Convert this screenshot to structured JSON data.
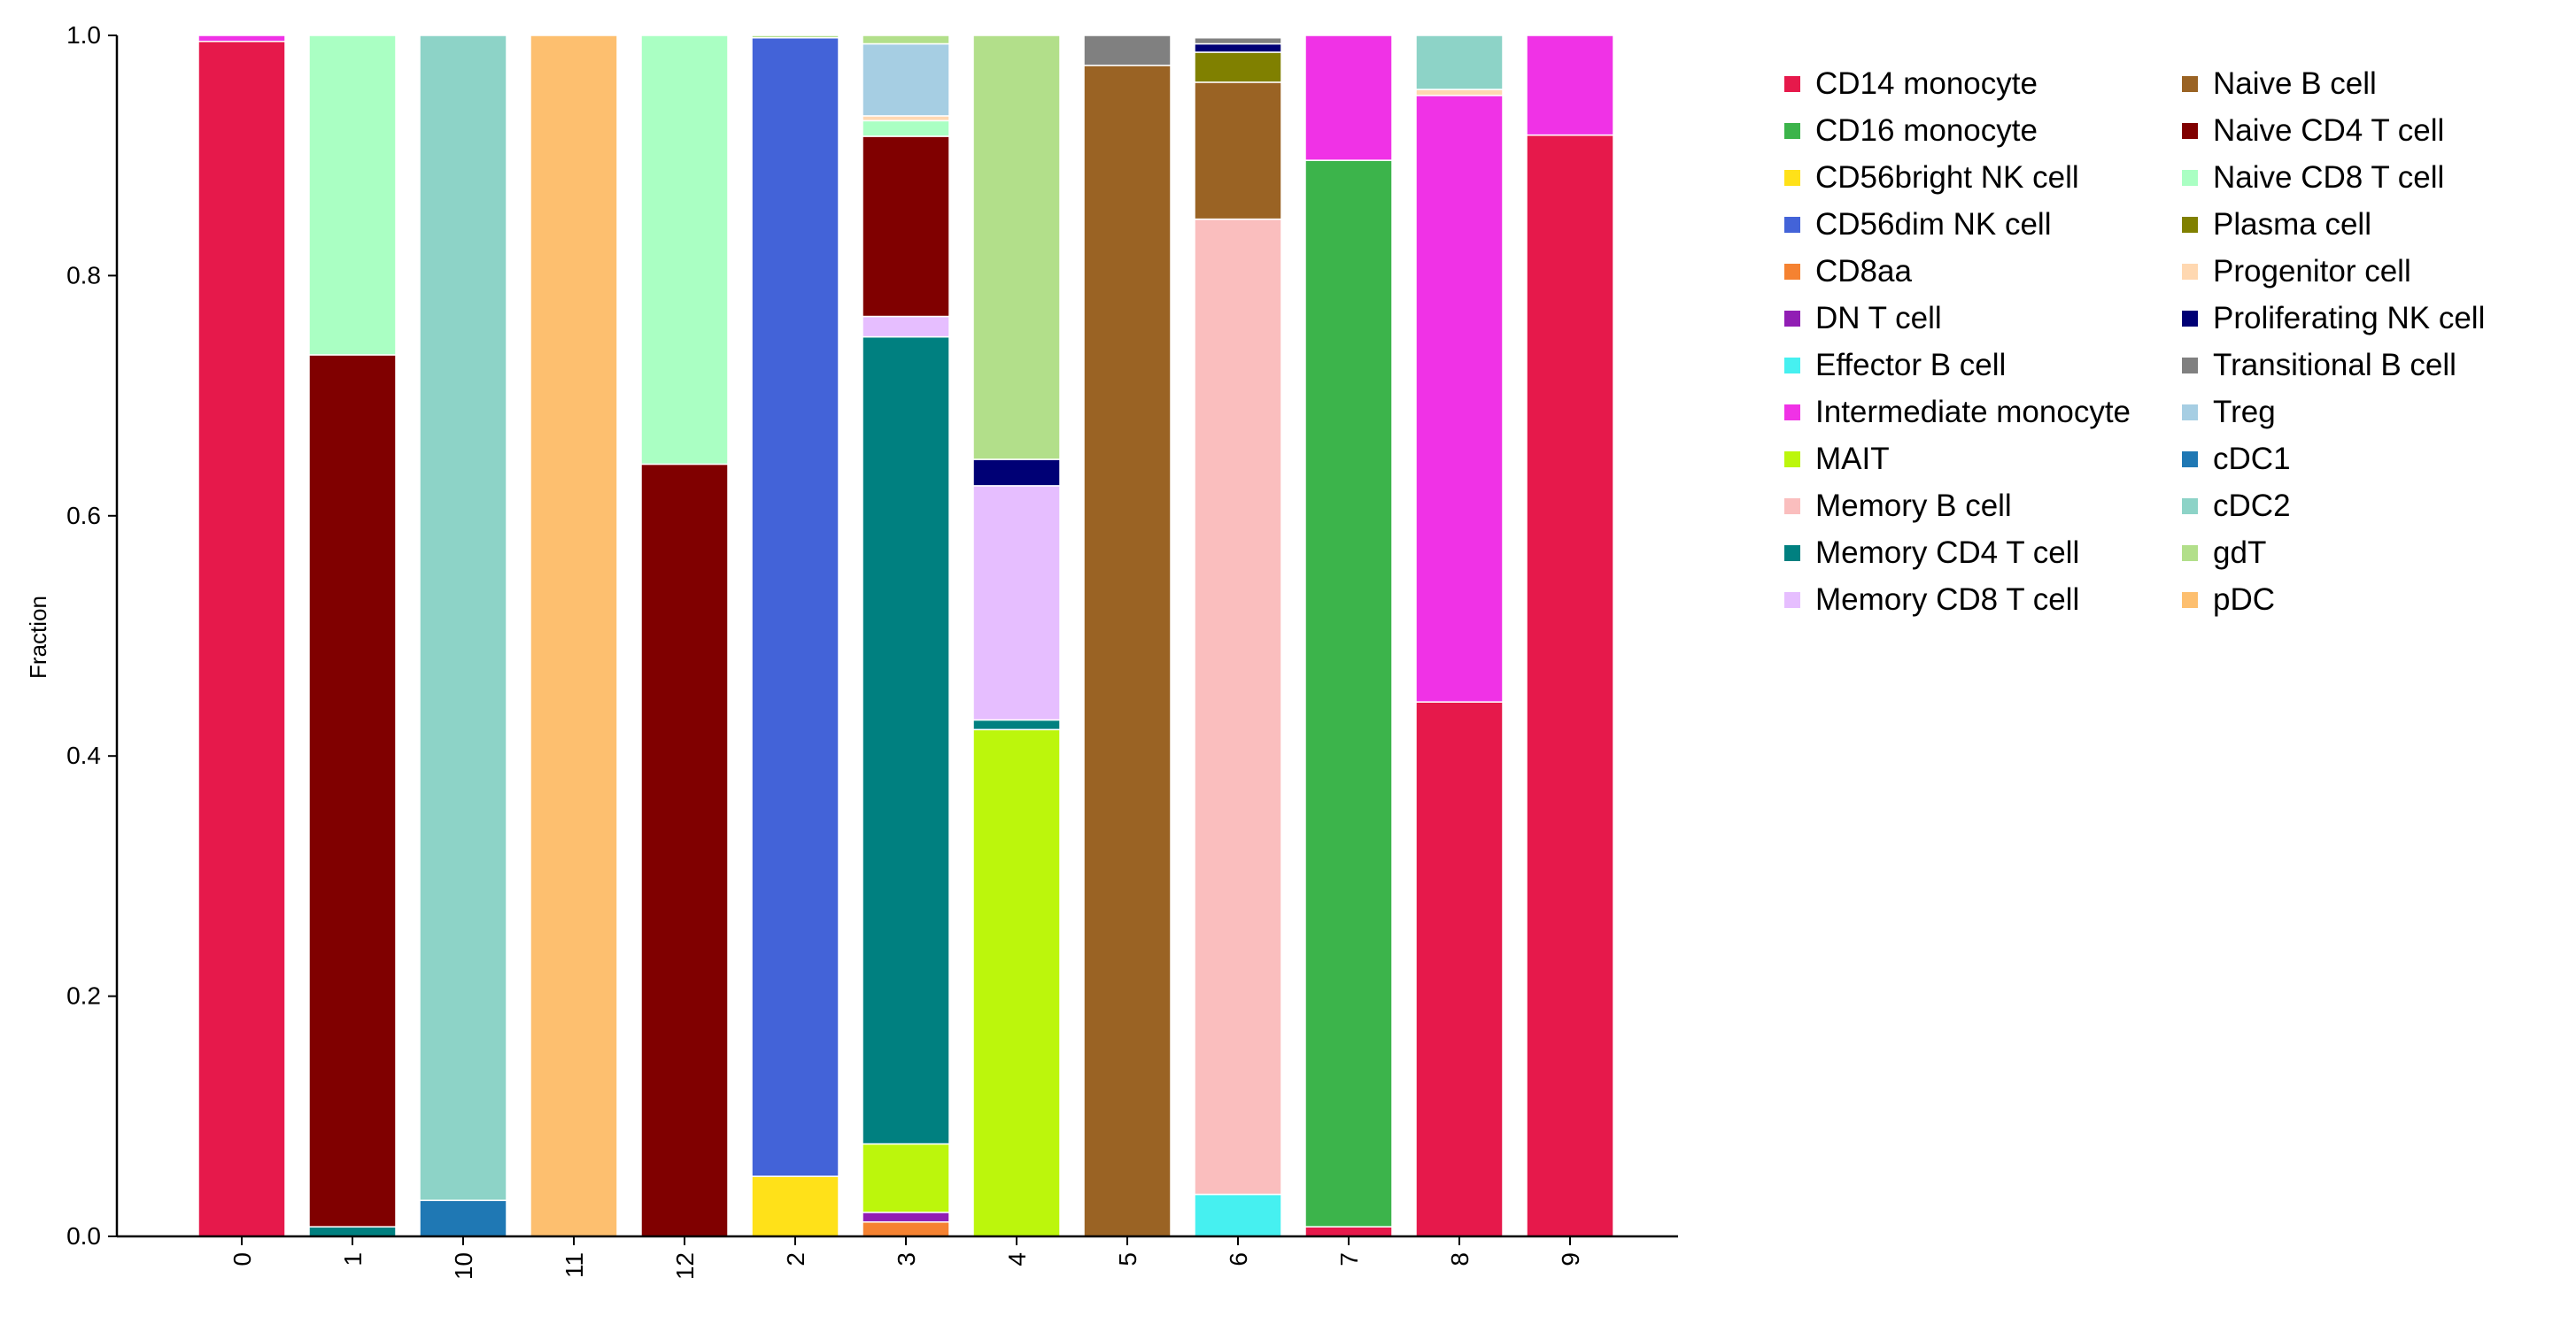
{
  "chart_data": {
    "type": "bar",
    "stacked": true,
    "title": "",
    "xlabel": "",
    "ylabel": "Fraction",
    "ylim": [
      0,
      1
    ],
    "yticks": [
      "0.0",
      "0.2",
      "0.4",
      "0.6",
      "0.8",
      "1.0"
    ],
    "grid": false,
    "legend_position": "right",
    "categories": [
      "0",
      "1",
      "10",
      "11",
      "12",
      "2",
      "3",
      "4",
      "5",
      "6",
      "7",
      "8",
      "9"
    ],
    "series": [
      {
        "name": "CD14 monocyte",
        "color": "#e6194b",
        "values": [
          0.995,
          0,
          0,
          0,
          0,
          0,
          0,
          0,
          0,
          0,
          0.008,
          0.445,
          0.917
        ]
      },
      {
        "name": "CD16 monocyte",
        "color": "#3cb44b",
        "values": [
          0,
          0,
          0,
          0,
          0,
          0,
          0,
          0,
          0,
          0,
          0.888,
          0,
          0
        ]
      },
      {
        "name": "CD56bright NK cell",
        "color": "#ffe119",
        "values": [
          0,
          0,
          0,
          0,
          0,
          0.05,
          0,
          0,
          0,
          0,
          0,
          0,
          0
        ]
      },
      {
        "name": "CD56dim NK cell",
        "color": "#4363d8",
        "values": [
          0,
          0,
          0,
          0,
          0,
          0.948,
          0,
          0,
          0,
          0,
          0,
          0,
          0
        ]
      },
      {
        "name": "CD8aa",
        "color": "#f58231",
        "values": [
          0,
          0,
          0,
          0,
          0,
          0,
          0.012,
          0,
          0,
          0,
          0,
          0,
          0
        ]
      },
      {
        "name": "DN T cell",
        "color": "#911eb4",
        "values": [
          0,
          0,
          0,
          0,
          0,
          0,
          0.008,
          0,
          0,
          0,
          0,
          0,
          0
        ]
      },
      {
        "name": "Effector B cell",
        "color": "#46f0f0",
        "values": [
          0,
          0,
          0,
          0,
          0,
          0,
          0,
          0,
          0,
          0.035,
          0,
          0,
          0
        ]
      },
      {
        "name": "Intermediate monocyte",
        "color": "#f032e6",
        "values": [
          0.005,
          0,
          0,
          0,
          0,
          0,
          0,
          0,
          0,
          0,
          0.104,
          0.505,
          0.083
        ]
      },
      {
        "name": "MAIT",
        "color": "#bcf60c",
        "values": [
          0,
          0,
          0,
          0,
          0,
          0,
          0.057,
          0.422,
          0,
          0,
          0,
          0,
          0
        ]
      },
      {
        "name": "Memory B cell",
        "color": "#fabebe",
        "values": [
          0,
          0,
          0,
          0,
          0,
          0,
          0,
          0,
          0,
          0.812,
          0,
          0,
          0
        ]
      },
      {
        "name": "Memory CD4 T cell",
        "color": "#008080",
        "values": [
          0,
          0.008,
          0,
          0,
          0,
          0,
          0.672,
          0.008,
          0,
          0,
          0,
          0,
          0
        ]
      },
      {
        "name": "Memory CD8 T cell",
        "color": "#e6beff",
        "values": [
          0,
          0,
          0,
          0,
          0,
          0,
          0.017,
          0.195,
          0,
          0,
          0,
          0,
          0
        ]
      },
      {
        "name": "Naive B cell",
        "color": "#9a6324",
        "values": [
          0,
          0,
          0,
          0,
          0,
          0,
          0,
          0,
          0.975,
          0.114,
          0,
          0,
          0
        ]
      },
      {
        "name": "Naive CD4 T cell",
        "color": "#800000",
        "values": [
          0,
          0.726,
          0,
          0,
          0.643,
          0,
          0.15,
          0,
          0,
          0,
          0,
          0,
          0
        ]
      },
      {
        "name": "Naive CD8 T cell",
        "color": "#aaffc3",
        "values": [
          0,
          0.266,
          0,
          0,
          0.357,
          0,
          0.013,
          0,
          0,
          0,
          0,
          0,
          0
        ]
      },
      {
        "name": "Plasma cell",
        "color": "#808000",
        "values": [
          0,
          0,
          0,
          0,
          0,
          0,
          0,
          0,
          0,
          0.025,
          0,
          0,
          0
        ]
      },
      {
        "name": "Progenitor cell",
        "color": "#ffd8b1",
        "values": [
          0,
          0,
          0,
          0,
          0,
          0,
          0.004,
          0,
          0,
          0,
          0,
          0.005,
          0
        ]
      },
      {
        "name": "Proliferating NK cell",
        "color": "#000075",
        "values": [
          0,
          0,
          0,
          0,
          0,
          0,
          0,
          0.022,
          0,
          0.007,
          0,
          0,
          0
        ]
      },
      {
        "name": "Transitional B cell",
        "color": "#808080",
        "values": [
          0,
          0,
          0,
          0,
          0,
          0,
          0,
          0,
          0.025,
          0.005,
          0,
          0,
          0
        ]
      },
      {
        "name": "Treg",
        "color": "#a6cee3",
        "values": [
          0,
          0,
          0,
          0,
          0,
          0,
          0.06,
          0,
          0,
          0,
          0,
          0,
          0
        ]
      },
      {
        "name": "cDC1",
        "color": "#1f78b4",
        "values": [
          0,
          0,
          0.03,
          0,
          0,
          0,
          0,
          0,
          0,
          0,
          0,
          0,
          0
        ]
      },
      {
        "name": "cDC2",
        "color": "#8dd3c7",
        "values": [
          0,
          0,
          0.97,
          0,
          0,
          0,
          0,
          0,
          0,
          0,
          0,
          0.045,
          0
        ]
      },
      {
        "name": "gdT",
        "color": "#b2df8a",
        "values": [
          0,
          0,
          0,
          0,
          0,
          0.002,
          0.007,
          0.353,
          0,
          0,
          0,
          0,
          0
        ]
      },
      {
        "name": "pDC",
        "color": "#fdbf6f",
        "values": [
          0,
          0,
          0,
          1.0,
          0,
          0,
          0,
          0,
          0,
          0,
          0,
          0,
          0
        ]
      }
    ]
  }
}
